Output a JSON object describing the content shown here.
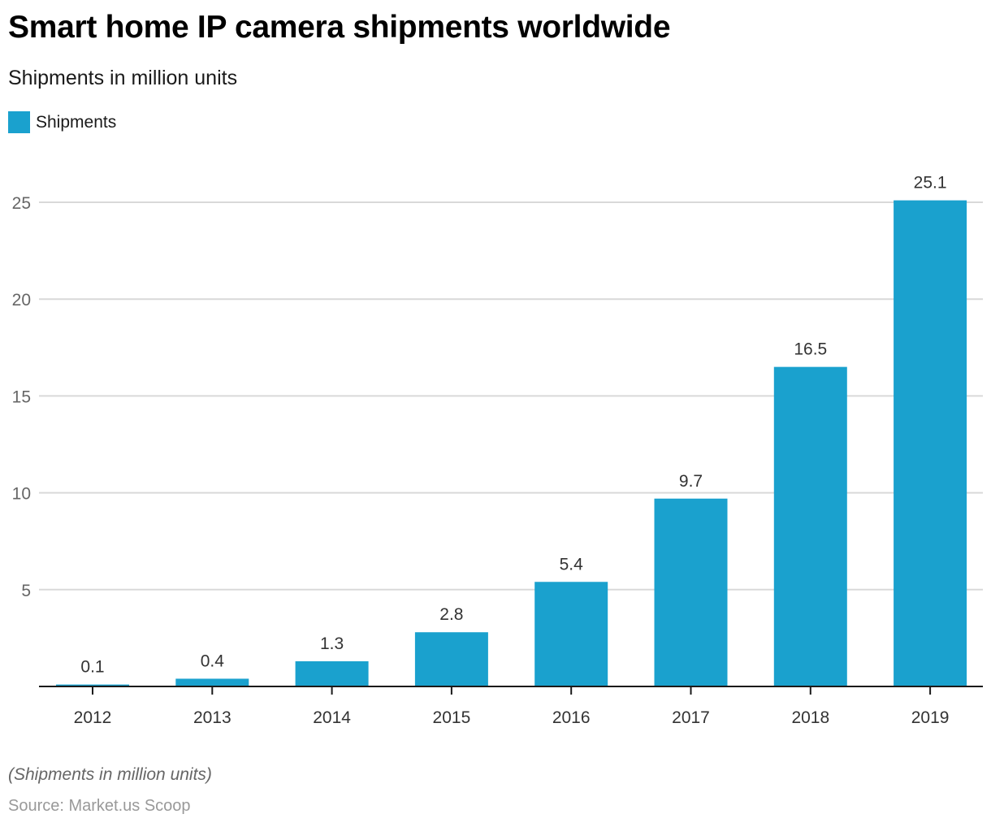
{
  "title": "Smart home IP camera shipments worldwide",
  "subtitle": "Shipments in million units",
  "footer": {
    "note": "(Shipments in million units)",
    "source": "Source: Market.us Scoop"
  },
  "colors": {
    "bar": "#1aa1ce",
    "grid": "#d9d9d9",
    "axis": "#1a1a1a"
  },
  "chart_data": {
    "type": "bar",
    "title": "Smart home IP camera shipments worldwide",
    "subtitle": "Shipments in million units",
    "xlabel": "",
    "ylabel": "",
    "categories": [
      "2012",
      "2013",
      "2014",
      "2015",
      "2016",
      "2017",
      "2018",
      "2019"
    ],
    "series": [
      {
        "name": "Shipments",
        "values": [
          0.1,
          0.4,
          1.3,
          2.8,
          5.4,
          9.7,
          16.5,
          25.1
        ]
      }
    ],
    "value_labels": [
      "0.1",
      "0.4",
      "1.3",
      "2.8",
      "5.4",
      "9.7",
      "16.5",
      "25.1"
    ],
    "ylim": [
      0,
      25
    ],
    "yticks": [
      5,
      10,
      15,
      20,
      25
    ],
    "ytick_labels": [
      "5",
      "10",
      "15",
      "20",
      "25"
    ],
    "grid": true,
    "legend": {
      "position": "top-left",
      "entries": [
        "Shipments"
      ]
    }
  }
}
